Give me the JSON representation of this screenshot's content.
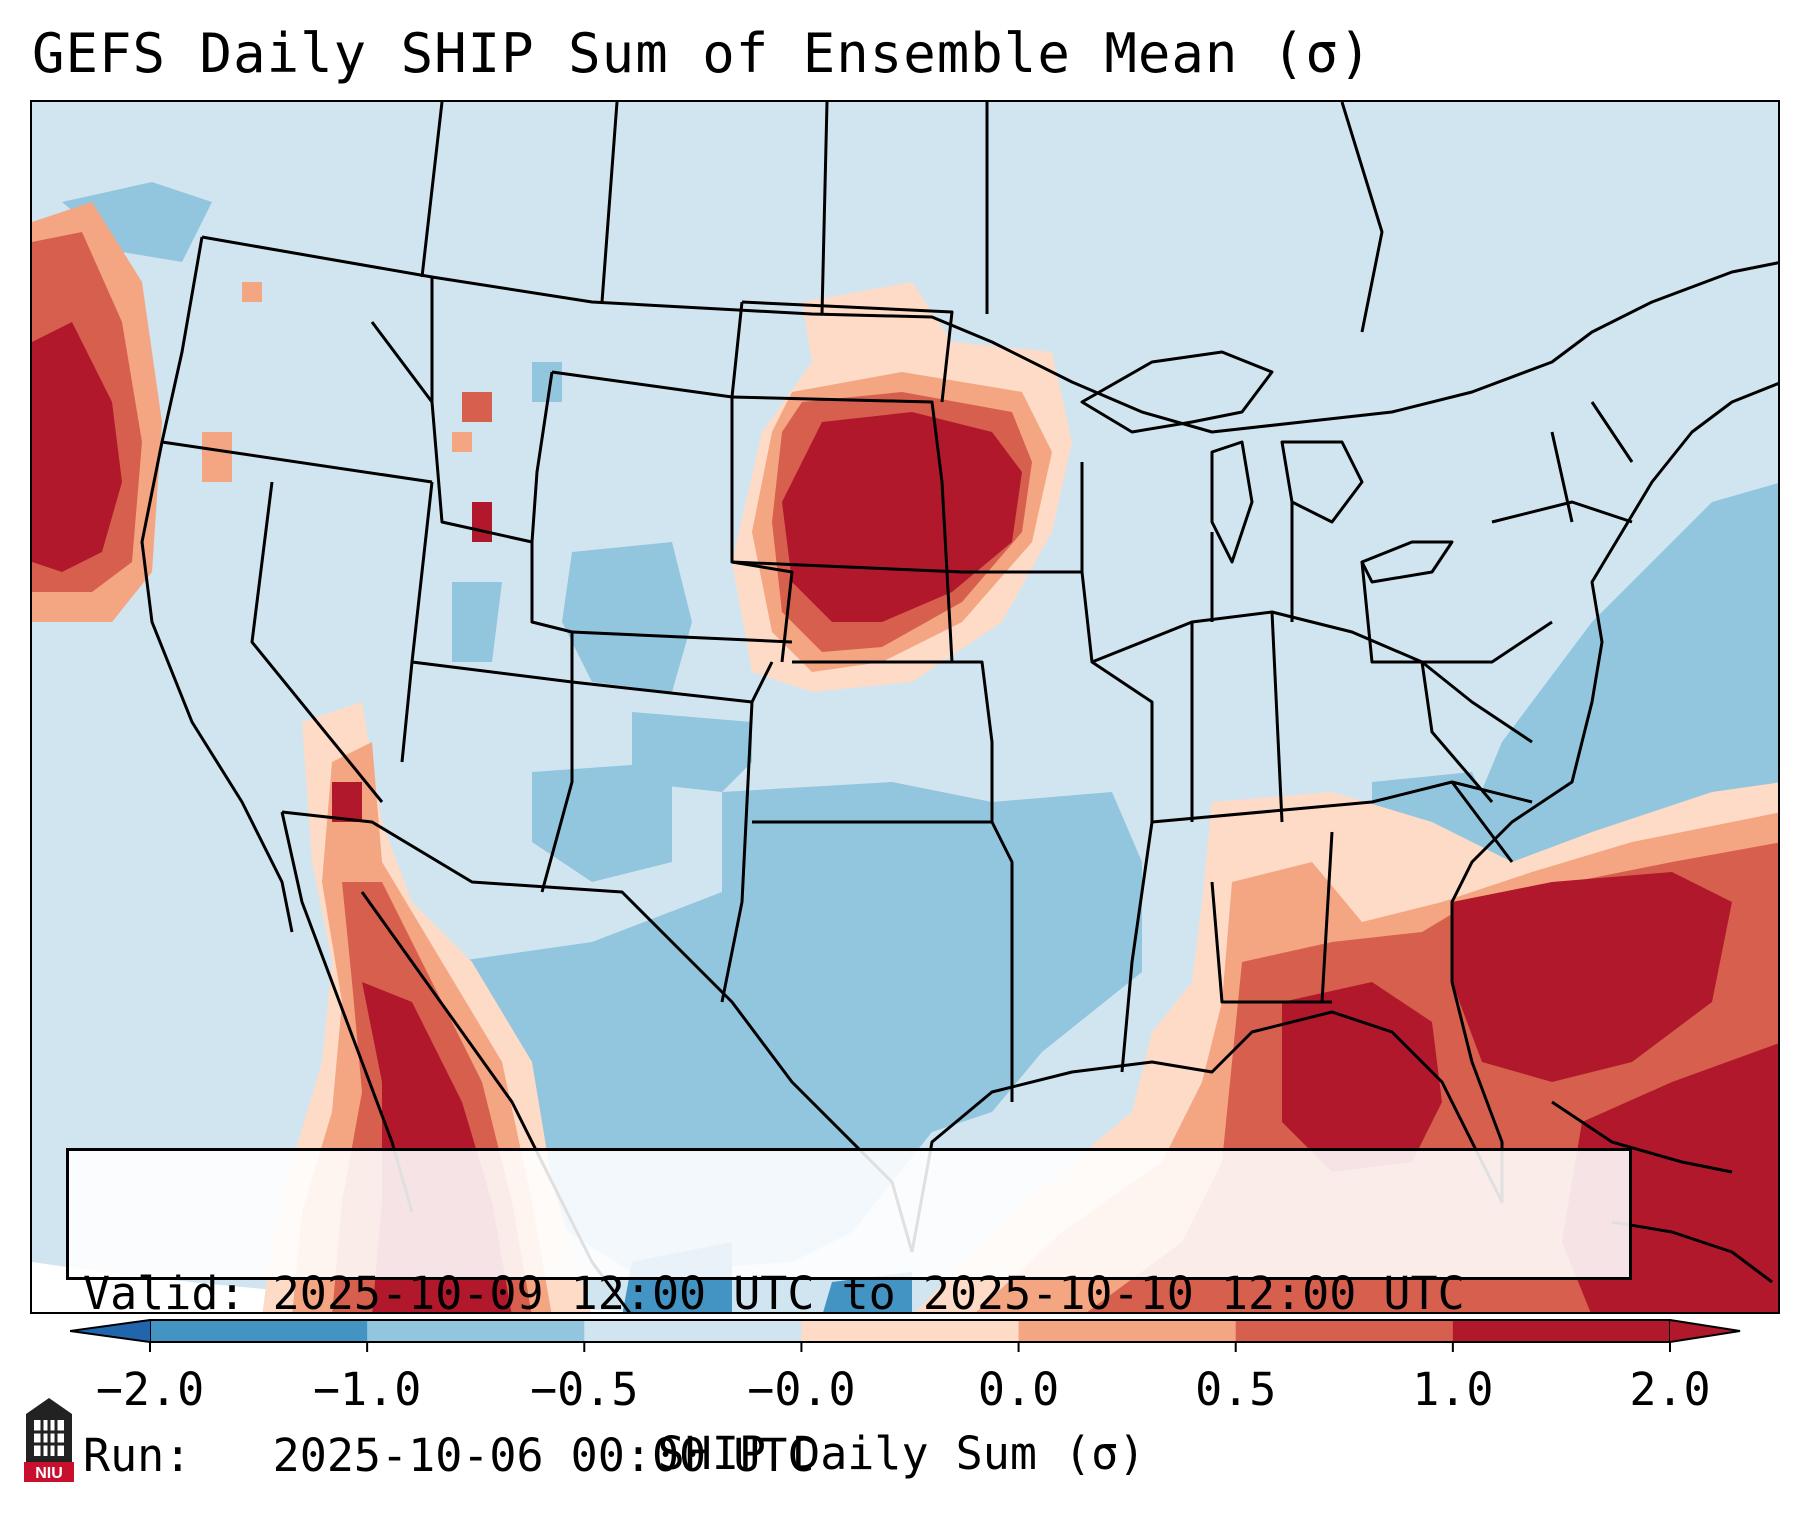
{
  "title": "GEFS Daily SHIP Sum of Ensemble Mean (σ)",
  "info": {
    "valid_line": "Valid: 2025-10-09 12:00 UTC to 2025-10-10 12:00 UTC",
    "run_line": "Run:   2025-10-06 00:00 UTC"
  },
  "colorbar": {
    "label": "SHIP Daily Sum (σ)",
    "ticks": [
      "−2.0",
      "−1.0",
      "−0.5",
      "−0.0",
      "0.0",
      "0.5",
      "1.0",
      "2.0"
    ],
    "colors": {
      "under": "#2166ac",
      "bins": [
        "#4393c3",
        "#92c5de",
        "#d1e5f0",
        "#fddbc7",
        "#f4a582",
        "#d6604d",
        "#b2182b"
      ]
    }
  },
  "logo": {
    "text": "NIU"
  },
  "colors": {
    "background_anomaly": "#d1e5f0",
    "ocean_outside": "#ffffff",
    "positive_max": "#b2182b",
    "negative_moderate": "#92c5de"
  }
}
